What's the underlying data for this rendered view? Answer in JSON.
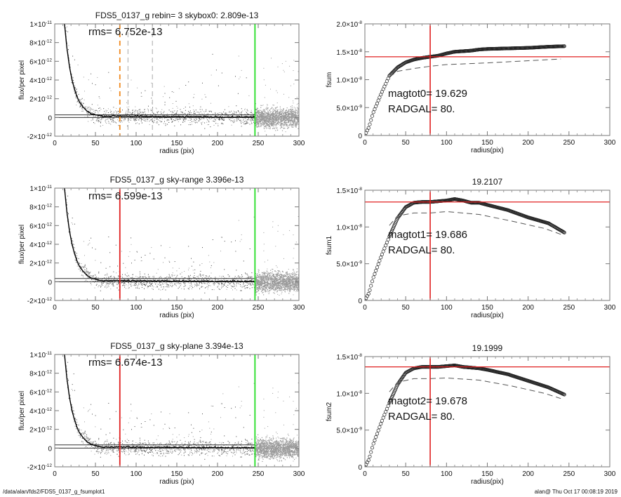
{
  "footer": {
    "path": "/data/alan/fds2/FDS5_0137_g_fsumplot1",
    "stamp": "alan@  Thu Oct 17 00:08:19 2019"
  },
  "colors": {
    "profile": "#000000",
    "scatter": "#9a9a9a",
    "scatter_dark": "#444444",
    "green": "#22dd22",
    "red": "#e02020",
    "orange": "#f08a20",
    "dashed_gray": "#aaaaaa"
  },
  "chart_data": [
    {
      "type": "scatter",
      "title": "FDS5_0137_g rebin= 3    skybox0:  2.809e-13",
      "annotation": "rms= 6.752e-13",
      "xlabel": "radius (pix)",
      "ylabel": "flux/per pixel",
      "xlim": [
        0,
        300
      ],
      "ylim": [
        -2e-12,
        1e-11
      ],
      "xticks": [
        "0",
        "50",
        "100",
        "150",
        "200",
        "250",
        "300"
      ],
      "yticks": [
        {
          "v": -2e-12,
          "b": "-2×10",
          "e": "-12"
        },
        {
          "v": 0,
          "b": "0",
          "e": ""
        },
        {
          "v": 2e-12,
          "b": "2×10",
          "e": "-12"
        },
        {
          "v": 4e-12,
          "b": "4×10",
          "e": "-12"
        },
        {
          "v": 6e-12,
          "b": "6×10",
          "e": "-12"
        },
        {
          "v": 8e-12,
          "b": "8×10",
          "e": "-12"
        },
        {
          "v": 1e-11,
          "b": "1×10",
          "e": "-11"
        }
      ],
      "sky": 2.809e-13,
      "vlines": [
        {
          "x": 80,
          "color": "orange",
          "dash": true
        },
        {
          "x": 90,
          "color": "dashed_gray",
          "dash": true
        },
        {
          "x": 120,
          "color": "dashed_gray",
          "dash": true
        },
        {
          "x": 246,
          "color": "green",
          "dash": false
        }
      ],
      "profile": {
        "r": [
          12,
          15,
          18,
          21,
          24,
          27,
          30,
          35,
          40,
          45,
          50,
          55,
          60,
          70,
          80,
          100,
          120,
          150,
          180,
          210,
          245
        ],
        "flux": [
          1e-11,
          7.4e-12,
          5.5e-12,
          4.1e-12,
          3.1e-12,
          2.3e-12,
          1.7e-12,
          1.1e-12,
          6.5e-13,
          4e-13,
          2.8e-13,
          2e-13,
          1.2e-13,
          1.5e-13,
          1.6e-13,
          1.2e-13,
          1e-13,
          9e-14,
          8e-14,
          6e-14,
          5e-14
        ]
      }
    },
    {
      "type": "line",
      "title": "",
      "annotations": [
        "magtot0=  19.629",
        " RADGAL=     80."
      ],
      "xlabel": "radius(pix)",
      "ylabel": "fsum",
      "xlim": [
        0,
        300
      ],
      "ylim": [
        0,
        2e-08
      ],
      "xticks": [
        "0",
        "50",
        "100",
        "150",
        "200",
        "250",
        "300"
      ],
      "yticks": [
        {
          "v": 0,
          "b": "0",
          "e": ""
        },
        {
          "v": 5e-09,
          "b": "5.0×10",
          "e": "-9"
        },
        {
          "v": 1e-08,
          "b": "1.0×10",
          "e": "-8"
        },
        {
          "v": 1.5e-08,
          "b": "1.5×10",
          "e": "-8"
        },
        {
          "v": 2e-08,
          "b": "2.0×10",
          "e": "-8"
        }
      ],
      "hline": 1.41e-08,
      "vline": 80,
      "series": [
        {
          "name": "fsum",
          "r": [
            0,
            5,
            10,
            20,
            30,
            40,
            50,
            60,
            70,
            80,
            90,
            100,
            110,
            120,
            130,
            140,
            150,
            175,
            200,
            225,
            245
          ],
          "v": [
            0,
            1.5e-09,
            4e-09,
            7.5e-09,
            1.07e-08,
            1.22e-08,
            1.31e-08,
            1.36e-08,
            1.39e-08,
            1.41e-08,
            1.43e-08,
            1.47e-08,
            1.5e-08,
            1.51e-08,
            1.52e-08,
            1.54e-08,
            1.55e-08,
            1.56e-08,
            1.57e-08,
            1.59e-08,
            1.6e-08
          ]
        },
        {
          "name": "fsum-dashed",
          "r": [
            30,
            40,
            60,
            80,
            100,
            150,
            200,
            240
          ],
          "v": [
            1.05e-08,
            1.15e-08,
            1.2e-08,
            1.24e-08,
            1.27e-08,
            1.3e-08,
            1.34e-08,
            1.37e-08
          ]
        }
      ]
    },
    {
      "type": "scatter",
      "title": "FDS5_0137_g sky-range  3.396e-13",
      "annotation": "rms= 6.599e-13",
      "xlabel": "radius (pix)",
      "ylabel": "flux/per pixel",
      "xlim": [
        0,
        300
      ],
      "ylim": [
        -2e-12,
        1e-11
      ],
      "xticks": [
        "0",
        "50",
        "100",
        "150",
        "200",
        "250",
        "300"
      ],
      "yticks": [
        {
          "v": -2e-12,
          "b": "-2×10",
          "e": "-12"
        },
        {
          "v": 0,
          "b": "0",
          "e": ""
        },
        {
          "v": 2e-12,
          "b": "2×10",
          "e": "-12"
        },
        {
          "v": 4e-12,
          "b": "4×10",
          "e": "-12"
        },
        {
          "v": 6e-12,
          "b": "6×10",
          "e": "-12"
        },
        {
          "v": 8e-12,
          "b": "8×10",
          "e": "-12"
        },
        {
          "v": 1e-11,
          "b": "1×10",
          "e": "-11"
        }
      ],
      "sky": 3.396e-13,
      "vlines": [
        {
          "x": 80,
          "color": "red",
          "dash": false
        },
        {
          "x": 246,
          "color": "green",
          "dash": false
        }
      ],
      "profile": {
        "r": [
          12,
          15,
          18,
          21,
          24,
          27,
          30,
          35,
          40,
          45,
          50,
          55,
          60,
          70,
          80,
          100,
          120,
          150,
          180,
          210,
          245
        ],
        "flux": [
          1e-11,
          7.4e-12,
          5.5e-12,
          4.1e-12,
          3.1e-12,
          2.3e-12,
          1.7e-12,
          1.1e-12,
          6.5e-13,
          4e-13,
          2.5e-13,
          1.5e-13,
          1e-13,
          1.2e-13,
          1.3e-13,
          1e-13,
          8e-14,
          7e-14,
          6e-14,
          5e-14,
          4e-14
        ]
      }
    },
    {
      "type": "line",
      "title": "19.2107",
      "annotations": [
        "magtot1=  19.686",
        " RADGAL=     80."
      ],
      "xlabel": "radius(pix)",
      "ylabel": "fsum1",
      "xlim": [
        0,
        300
      ],
      "ylim": [
        0,
        1.5e-08
      ],
      "xticks": [
        "0",
        "50",
        "100",
        "150",
        "200",
        "250",
        "300"
      ],
      "yticks": [
        {
          "v": 0,
          "b": "0",
          "e": ""
        },
        {
          "v": 5e-09,
          "b": "5.0×10",
          "e": "-9"
        },
        {
          "v": 1e-08,
          "b": "1.0×10",
          "e": "-8"
        },
        {
          "v": 1.5e-08,
          "b": "1.5×10",
          "e": "-8"
        }
      ],
      "hline": 1.34e-08,
      "vline": 80,
      "series": [
        {
          "name": "fsum1",
          "r": [
            0,
            5,
            10,
            20,
            30,
            40,
            50,
            60,
            70,
            80,
            90,
            100,
            110,
            120,
            130,
            140,
            150,
            175,
            200,
            225,
            245
          ],
          "v": [
            0,
            1e-09,
            3e-09,
            6e-09,
            8.7e-09,
            1.12e-08,
            1.27e-08,
            1.33e-08,
            1.34e-08,
            1.34e-08,
            1.35e-08,
            1.36e-08,
            1.38e-08,
            1.36e-08,
            1.33e-08,
            1.33e-08,
            1.3e-08,
            1.23e-08,
            1.13e-08,
            1.05e-08,
            9.2e-09
          ]
        },
        {
          "name": "fsum1-dashed",
          "r": [
            30,
            40,
            60,
            80,
            100,
            140,
            180,
            220,
            240
          ],
          "v": [
            1.02e-08,
            1.15e-08,
            1.19e-08,
            1.19e-08,
            1.21e-08,
            1.17e-08,
            1.08e-08,
            9.8e-09,
            9e-09
          ]
        }
      ]
    },
    {
      "type": "scatter",
      "title": "FDS5_0137_g sky-plane  3.394e-13",
      "annotation": "rms= 6.674e-13",
      "xlabel": "radius (pix)",
      "ylabel": "flux/per pixel",
      "xlim": [
        0,
        300
      ],
      "ylim": [
        -2e-12,
        1e-11
      ],
      "xticks": [
        "0",
        "50",
        "100",
        "150",
        "200",
        "250",
        "300"
      ],
      "yticks": [
        {
          "v": -2e-12,
          "b": "-2×10",
          "e": "-12"
        },
        {
          "v": 0,
          "b": "0",
          "e": ""
        },
        {
          "v": 2e-12,
          "b": "2×10",
          "e": "-12"
        },
        {
          "v": 4e-12,
          "b": "4×10",
          "e": "-12"
        },
        {
          "v": 6e-12,
          "b": "6×10",
          "e": "-12"
        },
        {
          "v": 8e-12,
          "b": "8×10",
          "e": "-12"
        },
        {
          "v": 1e-11,
          "b": "1×10",
          "e": "-11"
        }
      ],
      "sky": 3.394e-13,
      "vlines": [
        {
          "x": 80,
          "color": "red",
          "dash": false
        },
        {
          "x": 246,
          "color": "green",
          "dash": false
        }
      ],
      "profile": {
        "r": [
          12,
          15,
          18,
          21,
          24,
          27,
          30,
          35,
          40,
          45,
          50,
          55,
          60,
          70,
          80,
          100,
          120,
          150,
          180,
          210,
          245
        ],
        "flux": [
          1e-11,
          7.4e-12,
          5.5e-12,
          4.1e-12,
          3.1e-12,
          2.3e-12,
          1.7e-12,
          1.1e-12,
          6.5e-13,
          4e-13,
          2.5e-13,
          1.5e-13,
          1e-13,
          1.2e-13,
          1.3e-13,
          1e-13,
          8e-14,
          7e-14,
          6e-14,
          5e-14,
          4e-14
        ]
      }
    },
    {
      "type": "line",
      "title": "19.1999",
      "annotations": [
        "magtot2=  19.678",
        " RADGAL=     80."
      ],
      "xlabel": "radius(pix)",
      "ylabel": "fsum2",
      "xlim": [
        0,
        300
      ],
      "ylim": [
        0,
        1.5e-08
      ],
      "xticks": [
        "0",
        "50",
        "100",
        "150",
        "200",
        "250",
        "300"
      ],
      "yticks": [
        {
          "v": 0,
          "b": "0",
          "e": ""
        },
        {
          "v": 5e-09,
          "b": "5.0×10",
          "e": "-9"
        },
        {
          "v": 1e-08,
          "b": "1.0×10",
          "e": "-8"
        },
        {
          "v": 1.5e-08,
          "b": "1.5×10",
          "e": "-8"
        }
      ],
      "hline": 1.36e-08,
      "vline": 80,
      "series": [
        {
          "name": "fsum2",
          "r": [
            0,
            5,
            10,
            20,
            30,
            40,
            50,
            60,
            70,
            80,
            90,
            100,
            110,
            120,
            130,
            140,
            150,
            175,
            200,
            225,
            245
          ],
          "v": [
            0,
            1e-09,
            3e-09,
            6e-09,
            8.7e-09,
            1.12e-08,
            1.28e-08,
            1.34e-08,
            1.36e-08,
            1.36e-08,
            1.36e-08,
            1.37e-08,
            1.38e-08,
            1.36e-08,
            1.35e-08,
            1.34e-08,
            1.32e-08,
            1.26e-08,
            1.17e-08,
            1.08e-08,
            9.8e-09
          ]
        },
        {
          "name": "fsum2-dashed",
          "r": [
            30,
            40,
            60,
            80,
            100,
            140,
            180,
            220,
            240
          ],
          "v": [
            1.02e-08,
            1.15e-08,
            1.2e-08,
            1.2e-08,
            1.21e-08,
            1.18e-08,
            1.1e-08,
            1e-08,
            9.3e-09
          ]
        }
      ]
    }
  ]
}
